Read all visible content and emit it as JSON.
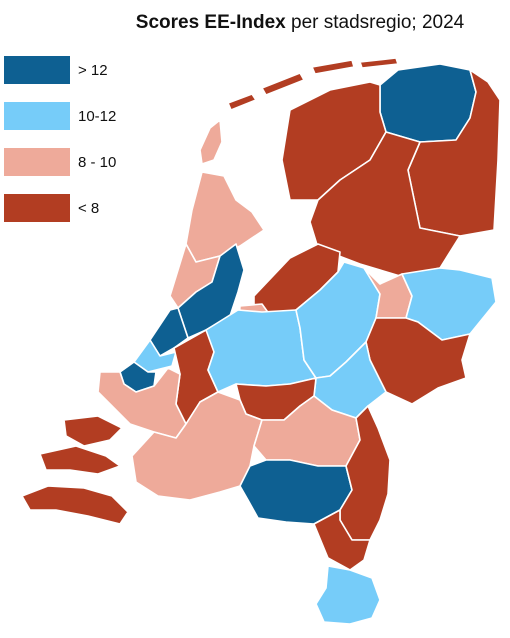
{
  "title": {
    "bold": "Scores EE-Index",
    "rest": " per stadsregio; 2024"
  },
  "legend": [
    {
      "label": "> 12",
      "color": "#0e6092"
    },
    {
      "label": "10-12",
      "color": "#76ccf9"
    },
    {
      "label": "8 - 10",
      "color": "#eeaa9a"
    },
    {
      "label": "< 8",
      "color": "#b23d22"
    }
  ],
  "map": {
    "country": "Netherlands",
    "regions": [
      {
        "id": "wadden-1",
        "class": "< 8"
      },
      {
        "id": "wadden-2",
        "class": "< 8"
      },
      {
        "id": "wadden-3",
        "class": "< 8"
      },
      {
        "id": "wadden-4",
        "class": "< 8"
      },
      {
        "id": "texel",
        "class": "8 - 10"
      },
      {
        "id": "groningen-city",
        "class": "> 12"
      },
      {
        "id": "north-east",
        "class": "< 8"
      },
      {
        "id": "friesland",
        "class": "< 8"
      },
      {
        "id": "drenthe",
        "class": "< 8"
      },
      {
        "id": "kop-noord-holland",
        "class": "8 - 10"
      },
      {
        "id": "noord-holland-mid",
        "class": "8 - 10"
      },
      {
        "id": "amsterdam",
        "class": "> 12"
      },
      {
        "id": "flevoland-north",
        "class": "< 8"
      },
      {
        "id": "flevoland-south",
        "class": "8 - 10"
      },
      {
        "id": "den-haag",
        "class": "> 12"
      },
      {
        "id": "leiden-zone",
        "class": "10-12"
      },
      {
        "id": "rotterdam",
        "class": "> 12"
      },
      {
        "id": "gouda-zone",
        "class": "< 8"
      },
      {
        "id": "utrecht",
        "class": "10-12"
      },
      {
        "id": "veluwe",
        "class": "10-12"
      },
      {
        "id": "zwolle-zone",
        "class": "8 - 10"
      },
      {
        "id": "twente-north",
        "class": "10-12"
      },
      {
        "id": "twente-south",
        "class": "< 8"
      },
      {
        "id": "arnhem-nijmegen",
        "class": "10-12"
      },
      {
        "id": "rivierenland",
        "class": "< 8"
      },
      {
        "id": "zeeland-north",
        "class": "8 - 10"
      },
      {
        "id": "zeeland-south",
        "class": "< 8"
      },
      {
        "id": "west-brabant",
        "class": "8 - 10"
      },
      {
        "id": "brabant-mid",
        "class": "8 - 10"
      },
      {
        "id": "eindhoven",
        "class": "> 12"
      },
      {
        "id": "noord-limburg",
        "class": "< 8"
      },
      {
        "id": "midden-limburg",
        "class": "< 8"
      },
      {
        "id": "zuid-limburg",
        "class": "10-12"
      }
    ]
  }
}
